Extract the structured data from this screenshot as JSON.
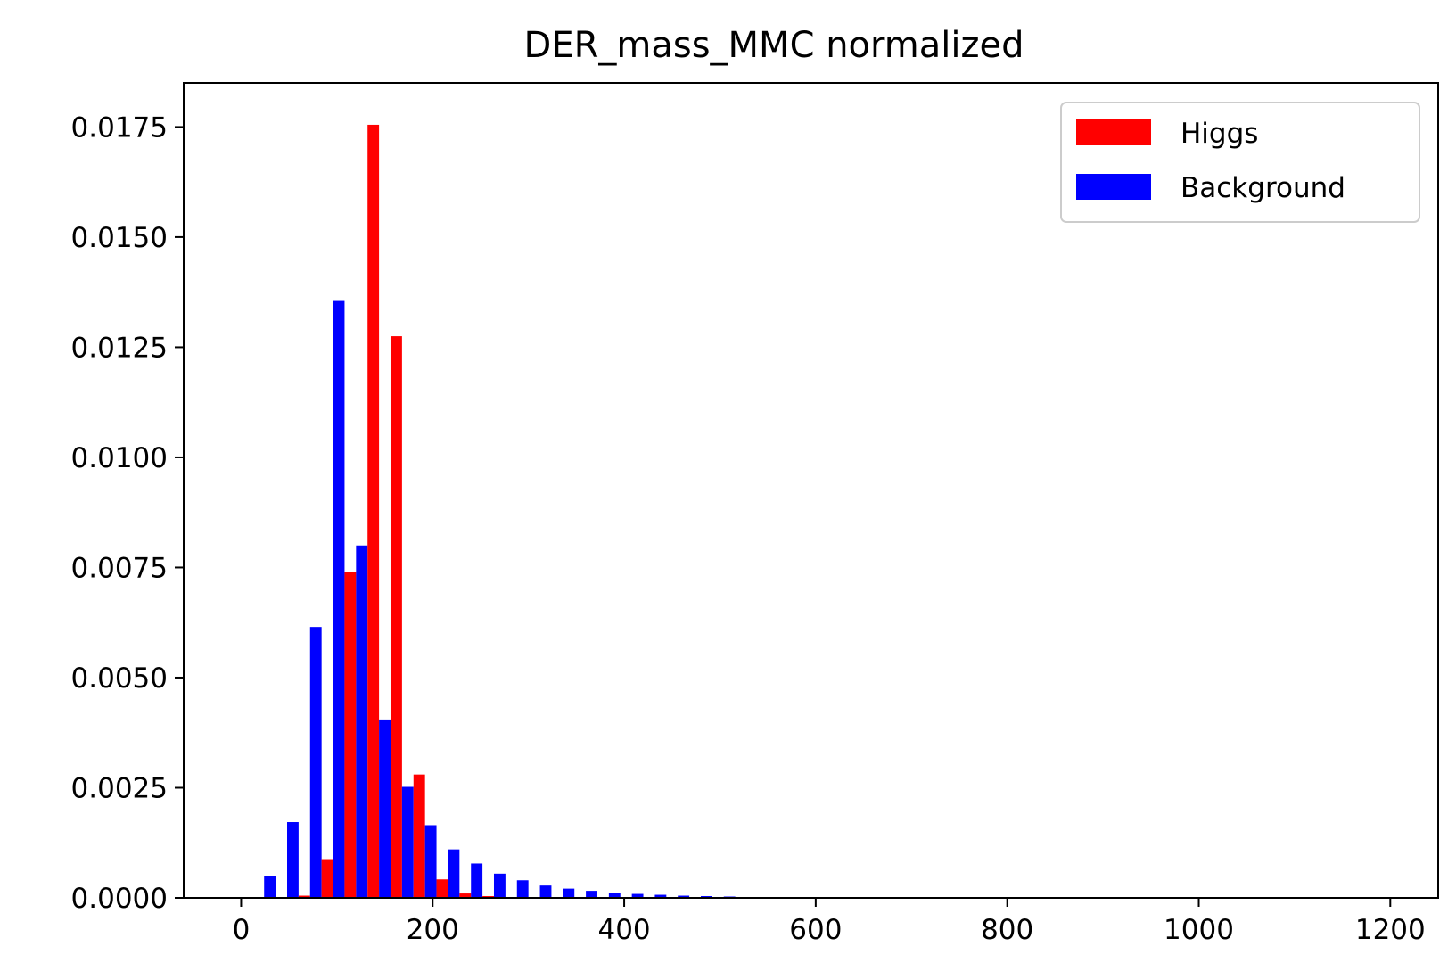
{
  "chart_data": {
    "type": "bar",
    "title": "DER_mass_MMC normalized",
    "xlabel": "",
    "ylabel": "",
    "xlim": [
      -60,
      1250
    ],
    "ylim": [
      0,
      0.0185
    ],
    "x_ticks": [
      "0",
      "200",
      "400",
      "600",
      "800",
      "1000",
      "1200"
    ],
    "x_tick_values": [
      0,
      200,
      400,
      600,
      800,
      1000,
      1200
    ],
    "y_ticks": [
      "0.0000",
      "0.0025",
      "0.0050",
      "0.0075",
      "0.0100",
      "0.0125",
      "0.0150",
      "0.0175"
    ],
    "y_tick_values": [
      0,
      0.0025,
      0.005,
      0.0075,
      0.01,
      0.0125,
      0.015,
      0.0175
    ],
    "bin_width": 24,
    "bin_starts": [
      24,
      48,
      72,
      96,
      120,
      144,
      168,
      192,
      216,
      240,
      264,
      288,
      312,
      336,
      360,
      384,
      408,
      432,
      456,
      480,
      504
    ],
    "series": [
      {
        "name": "Higgs",
        "color": "#ff0000",
        "values": [
          0.0,
          5e-05,
          0.00088,
          0.0074,
          0.01755,
          0.01275,
          0.0028,
          0.00042,
          0.0001,
          4e-05,
          2e-05,
          1e-05,
          0.0,
          0.0,
          0.0,
          0.0,
          0.0,
          0.0,
          0.0,
          0.0,
          0.0
        ]
      },
      {
        "name": "Background",
        "color": "#0000ff",
        "values": [
          0.0005,
          0.00172,
          0.00615,
          0.01355,
          0.008,
          0.00405,
          0.00252,
          0.00165,
          0.0011,
          0.00078,
          0.00055,
          0.0004,
          0.00028,
          0.00021,
          0.00016,
          0.00012,
          9e-05,
          7e-05,
          5e-05,
          4e-05,
          3e-05
        ]
      }
    ],
    "legend_position": "top-right"
  }
}
